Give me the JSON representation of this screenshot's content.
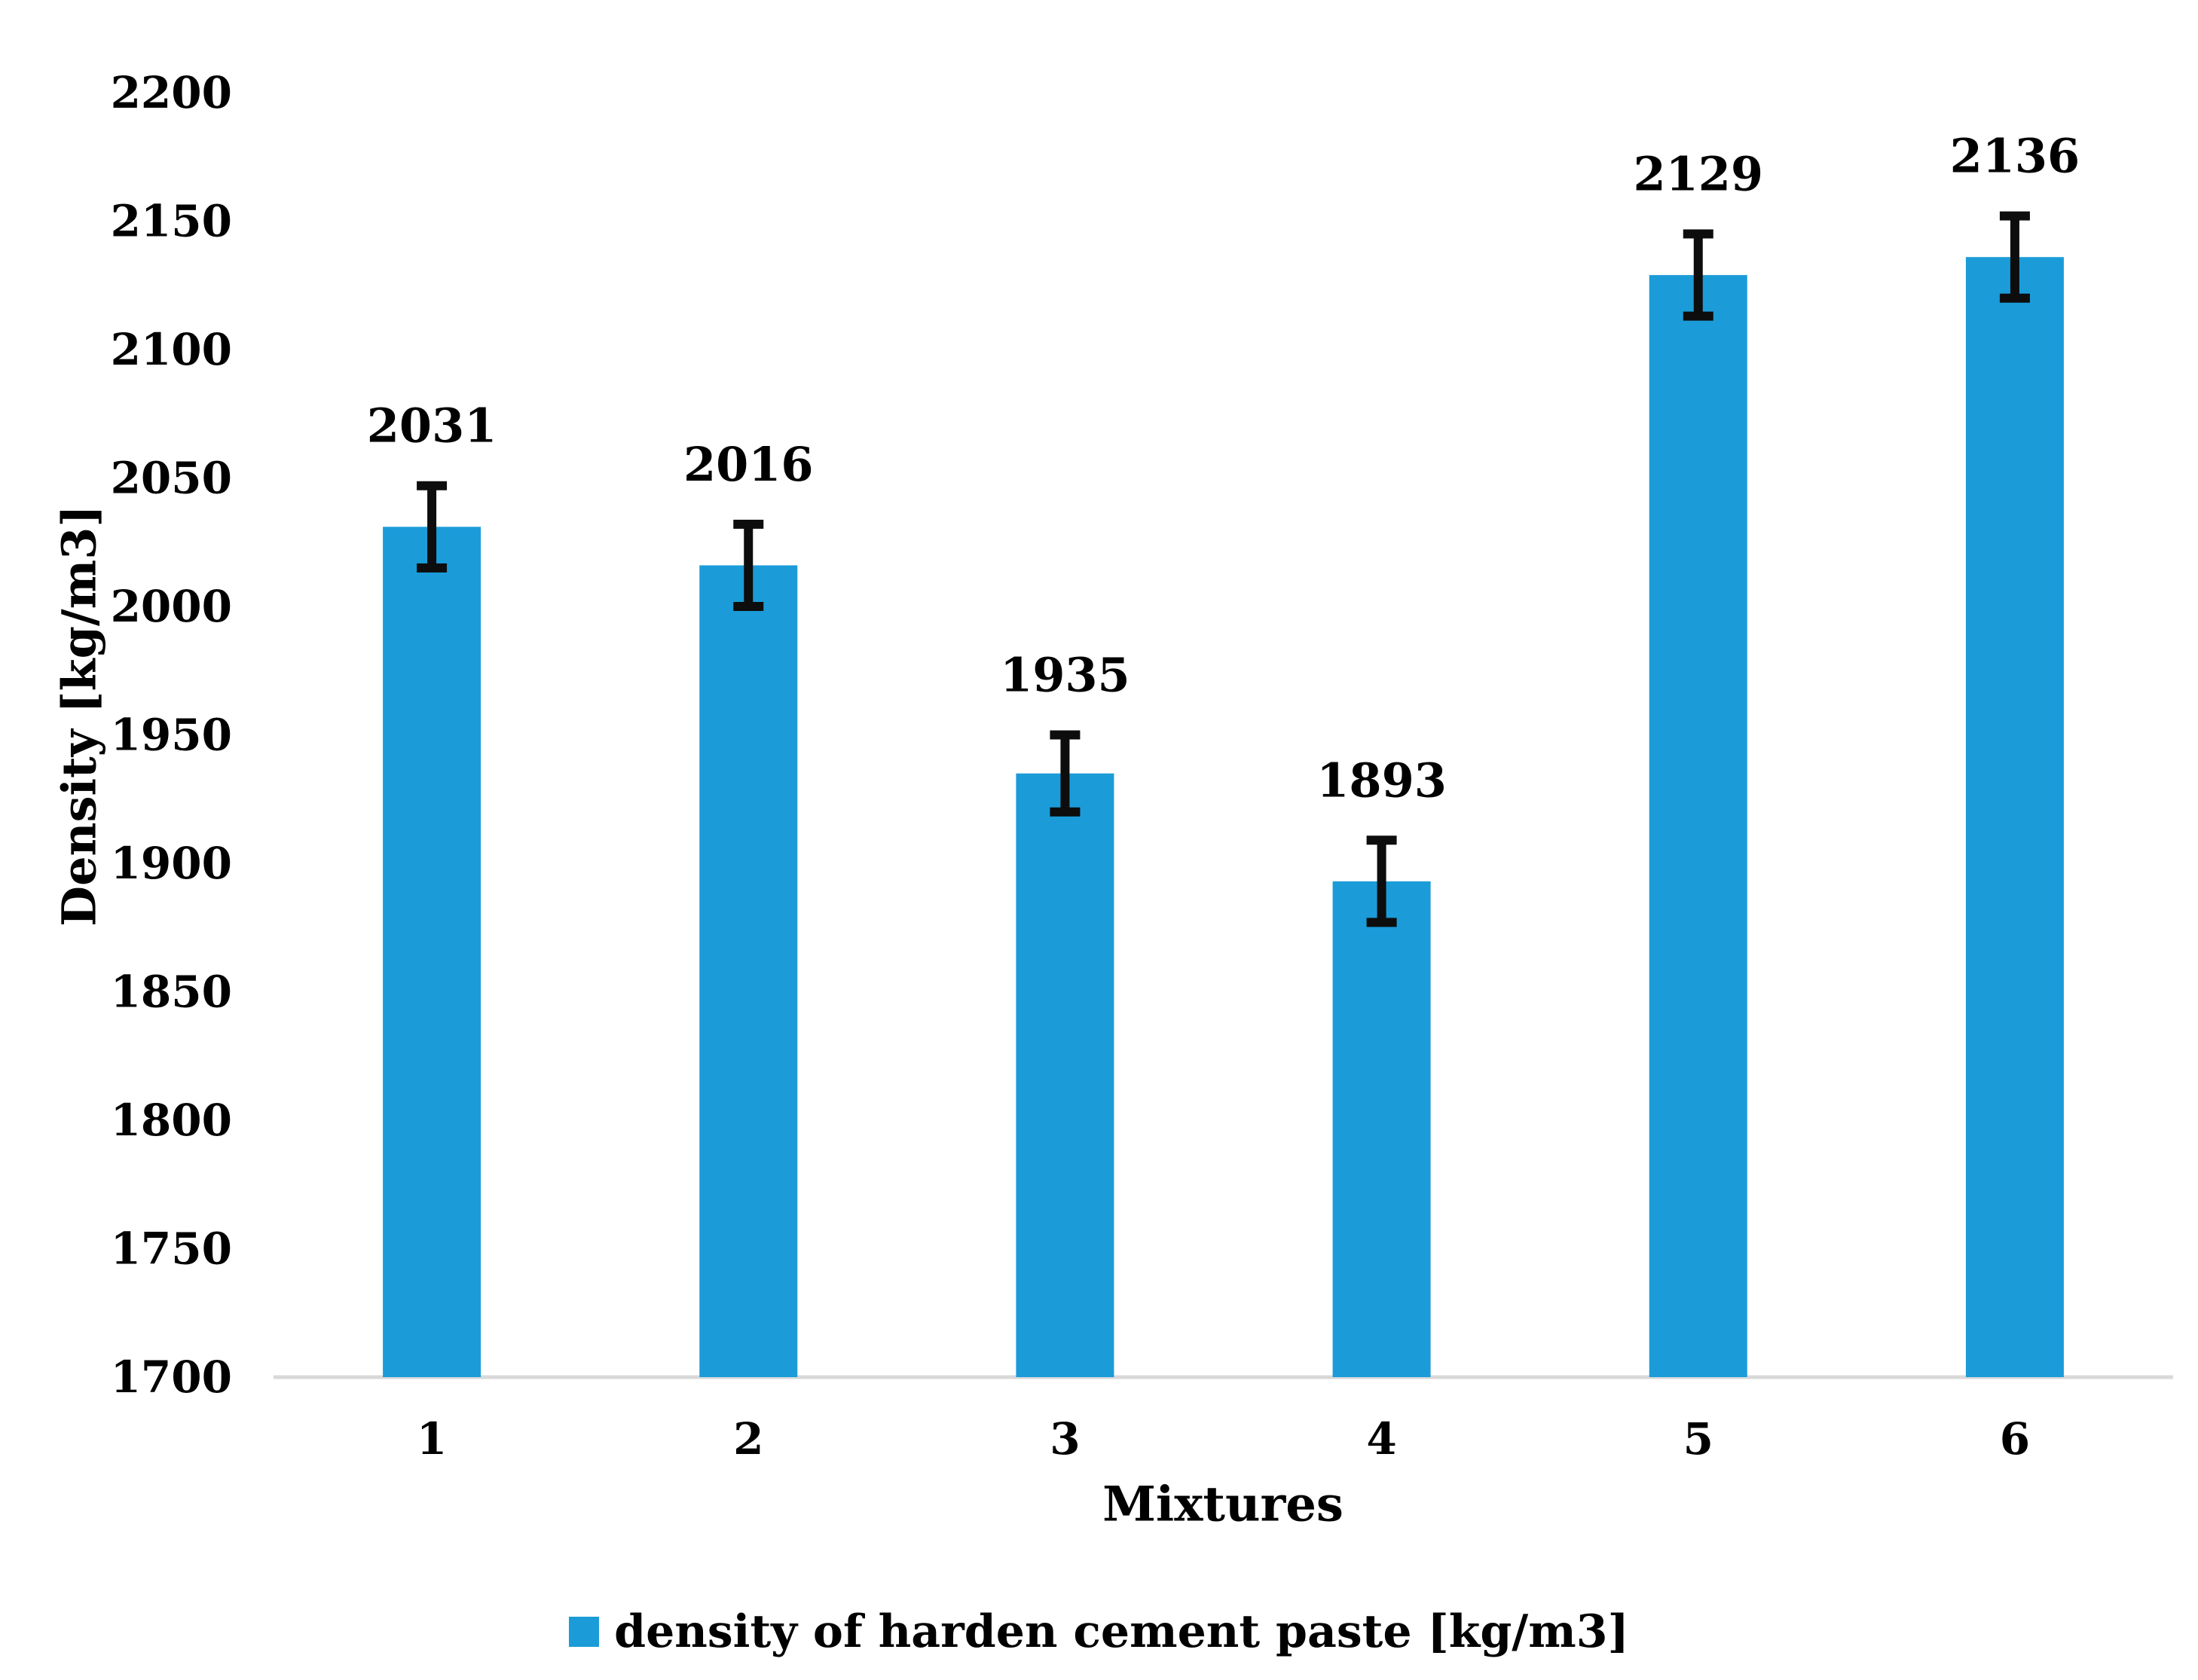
{
  "chart_data": {
    "type": "bar",
    "title": "",
    "xlabel": "Mixtures",
    "ylabel": "Density [kg/m3]",
    "categories": [
      "1",
      "2",
      "3",
      "4",
      "5",
      "6"
    ],
    "series": [
      {
        "name": "density of harden cement paste [kg/m3]",
        "values": [
          2031,
          2016,
          1935,
          1893,
          2129,
          2136
        ],
        "errors": [
          16,
          16,
          15,
          16,
          16,
          16
        ]
      }
    ],
    "show_data_labels": true,
    "data_labels": [
      "2031",
      "2016",
      "1935",
      "1893",
      "2129",
      "2136"
    ],
    "ylim": [
      1700,
      2200
    ],
    "ytick_step": 50,
    "yticks": [
      1700,
      1750,
      1800,
      1850,
      1900,
      1950,
      2000,
      2050,
      2100,
      2150,
      2200
    ],
    "grid": false,
    "legend_position": "bottom-center",
    "colors": {
      "bar": "#1B9CD8",
      "error_bar": "#0D0D0D",
      "axis_line": "#D9D9D9",
      "text": "#000000",
      "background": "#FFFFFF"
    }
  }
}
